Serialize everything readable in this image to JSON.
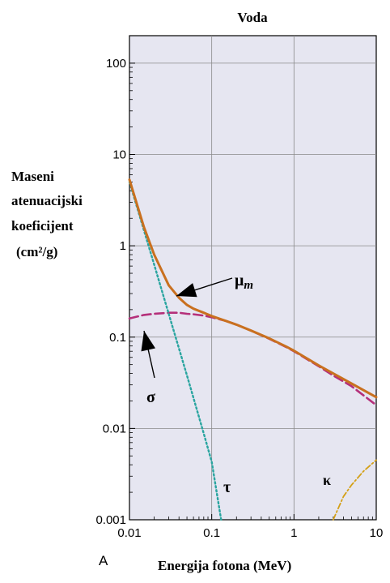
{
  "chart_data": {
    "type": "line",
    "title": "Voda",
    "xlabel": "Energija fotona (MeV)",
    "ylabel_lines": [
      "Maseni",
      "atenuacijski",
      "koeficijent",
      "(cm²/g)"
    ],
    "panel_label": "A",
    "x_scale": "log",
    "y_scale": "log",
    "xlim": [
      0.01,
      10
    ],
    "ylim": [
      0.001,
      200
    ],
    "grid": true,
    "x_ticks": [
      0.01,
      0.1,
      1,
      10
    ],
    "x_tick_labels": [
      "0.01",
      "0.1",
      "1",
      "10"
    ],
    "y_ticks": [
      0.001,
      0.01,
      0.1,
      1,
      10,
      100
    ],
    "y_tick_labels": [
      "0.001",
      "0.01",
      "0.1",
      "1",
      "10",
      "100"
    ],
    "series": [
      {
        "name": "μm",
        "color": "#c9701f",
        "style": "solid",
        "x": [
          0.01,
          0.015,
          0.02,
          0.03,
          0.04,
          0.05,
          0.06,
          0.08,
          0.1,
          0.15,
          0.2,
          0.3,
          0.5,
          0.8,
          1,
          2,
          3,
          5,
          10
        ],
        "y": [
          5.3,
          1.6,
          0.8,
          0.37,
          0.27,
          0.225,
          0.205,
          0.185,
          0.17,
          0.15,
          0.137,
          0.118,
          0.097,
          0.079,
          0.071,
          0.049,
          0.04,
          0.031,
          0.022
        ]
      },
      {
        "name": "σ",
        "color": "#b5307a",
        "style": "dashed",
        "x": [
          0.01,
          0.015,
          0.02,
          0.03,
          0.04,
          0.05,
          0.06,
          0.08,
          0.1,
          0.15,
          0.2,
          0.3,
          0.5,
          0.8,
          1,
          2,
          3,
          5,
          10
        ],
        "y": [
          0.16,
          0.175,
          0.18,
          0.185,
          0.185,
          0.18,
          0.178,
          0.172,
          0.165,
          0.15,
          0.137,
          0.118,
          0.096,
          0.078,
          0.07,
          0.048,
          0.038,
          0.029,
          0.018
        ]
      },
      {
        "name": "τ",
        "color": "#2aa5a0",
        "style": "dotted",
        "x": [
          0.01,
          0.02,
          0.03,
          0.05,
          0.08,
          0.1,
          0.13
        ],
        "y": [
          5.0,
          0.62,
          0.18,
          0.038,
          0.0088,
          0.0043,
          0.001
        ]
      },
      {
        "name": "κ",
        "color": "#d4a017",
        "style": "dashdot",
        "x": [
          3,
          4,
          5,
          7,
          10
        ],
        "y": [
          0.001,
          0.0018,
          0.0024,
          0.0034,
          0.0045
        ]
      }
    ],
    "annotations": [
      {
        "text": "μ",
        "sub": "m",
        "series": "μm"
      },
      {
        "text": "σ",
        "series": "σ"
      },
      {
        "text": "τ",
        "series": "τ"
      },
      {
        "text": "κ",
        "series": "κ"
      }
    ]
  }
}
